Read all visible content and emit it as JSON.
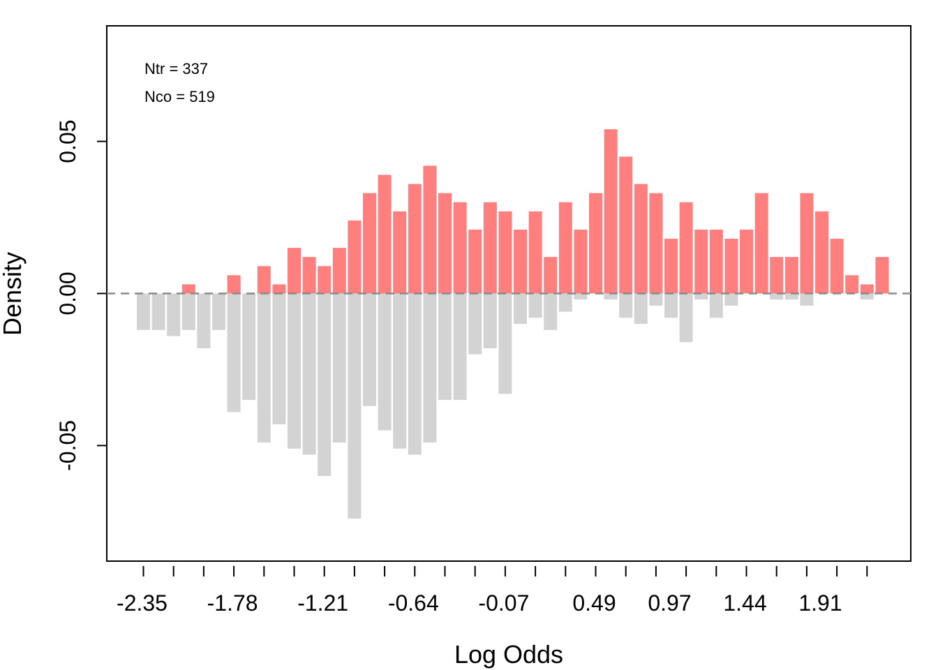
{
  "chart_data": {
    "type": "bar",
    "title": "",
    "xlabel": "Log Odds",
    "ylabel": "Density",
    "ylim": [
      -0.088,
      0.088
    ],
    "yticks": [
      -0.05,
      0.0,
      0.05
    ],
    "ytick_labels": [
      "-0.05",
      "0.00",
      "0.05"
    ],
    "xtick_labels": [
      "-2.35",
      "-1.78",
      "-1.21",
      "-0.64",
      "-0.07",
      "0.49",
      "0.97",
      "1.44",
      "1.91"
    ],
    "grid": false,
    "reference_line": 0,
    "annotations": {
      "ntr": "Ntr =  337",
      "nco": "Nco =  519"
    },
    "series": [
      {
        "name": "Ntr",
        "color": "#FF7F7F",
        "values": [
          0,
          0,
          0,
          0.003,
          0,
          0,
          0.006,
          0,
          0.009,
          0.003,
          0.015,
          0.012,
          0.009,
          0.015,
          0.024,
          0.033,
          0.039,
          0.027,
          0.036,
          0.042,
          0.033,
          0.03,
          0.021,
          0.03,
          0.027,
          0.021,
          0.027,
          0.012,
          0.03,
          0.021,
          0.033,
          0.054,
          0.045,
          0.036,
          0.033,
          0.018,
          0.03,
          0.021,
          0.021,
          0.018,
          0.021,
          0.033,
          0.012,
          0.012,
          0.033,
          0.027,
          0.018,
          0.006,
          0.003,
          0.012
        ]
      },
      {
        "name": "Nco",
        "color": "#D3D3D3",
        "values": [
          -0.012,
          -0.012,
          -0.014,
          -0.012,
          -0.018,
          -0.012,
          -0.039,
          -0.035,
          -0.049,
          -0.043,
          -0.051,
          -0.053,
          -0.06,
          -0.049,
          -0.074,
          -0.037,
          -0.045,
          -0.051,
          -0.053,
          -0.049,
          -0.035,
          -0.035,
          -0.02,
          -0.018,
          -0.033,
          -0.01,
          -0.008,
          -0.012,
          -0.006,
          -0.002,
          0,
          -0.002,
          -0.008,
          -0.01,
          -0.004,
          -0.008,
          -0.016,
          -0.002,
          -0.008,
          -0.004,
          0,
          0,
          -0.002,
          -0.002,
          -0.004,
          0,
          0,
          0,
          -0.002,
          0
        ]
      }
    ]
  }
}
